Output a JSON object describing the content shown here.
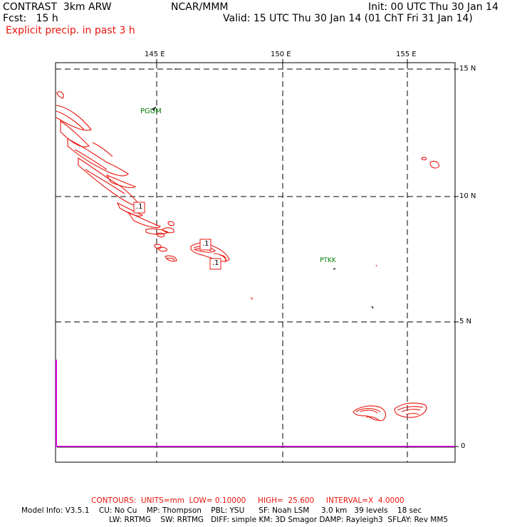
{
  "header": {
    "model": "CONTRAST  3km ARW",
    "org": "NCAR/MMM",
    "init": "Init: 00 UTC Thu 30 Jan 14",
    "fcst": "Fcst:   15 h",
    "valid": "Valid: 15 UTC Thu 30 Jan 14 (01 ChT Fri 31 Jan 14)",
    "field": "Explicit precip. in past 3 h"
  },
  "axes": {
    "lon_labels": [
      "145 E",
      "150 E",
      "155 E"
    ],
    "lat_labels": [
      "15 N",
      "10 N",
      "5 N",
      "0"
    ]
  },
  "stations": [
    "PGUM",
    "PTKK"
  ],
  "contour_labels": [
    ".1",
    ".1",
    ".1"
  ],
  "footer": {
    "contours": "CONTOURS:  UNITS=mm  LOW= 0.10000     HIGH=  25.600     INTERVAL=X  4.0000",
    "model_info_1": "Model Info: V3.5.1    CU: No Cu    MP: Thompson    PBL: YSU      SF: Noah LSM     3.0 km   39 levels    18 sec",
    "model_info_2": "LW: RRTMG    SW: RRTMG   DIFF: simple KM: 3D Smagor DAMP: Rayleigh3  SFLAY: Rev MM5"
  },
  "colors": {
    "contour": "#e8140c",
    "station": "#007a00",
    "equator_line": "#e000e0"
  }
}
